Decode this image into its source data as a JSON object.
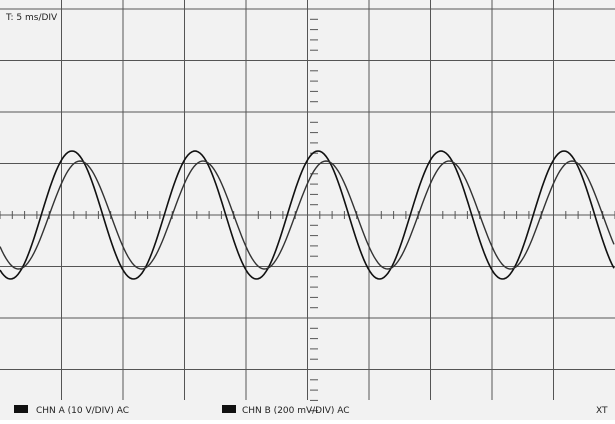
{
  "screen": {
    "timebase": "T: 5 ms/DIV",
    "channels": [
      {
        "label": "CHN A (10 V/DIV) AC"
      },
      {
        "label": "CHN B (200 mV/DIV) AC"
      }
    ],
    "mode": "XT"
  }
}
